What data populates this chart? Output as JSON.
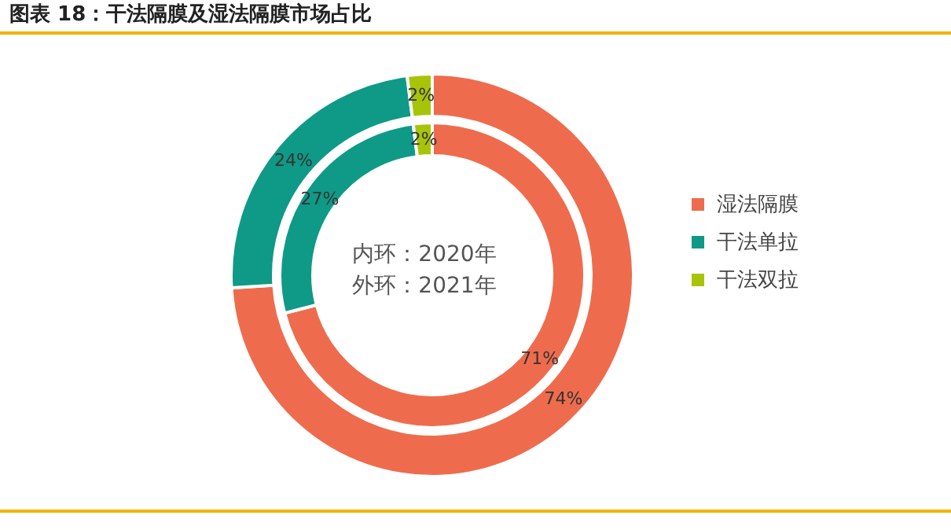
{
  "chart_data": {
    "type": "donut",
    "title": "图表 18：干法隔膜及湿法隔膜市场占比",
    "categories": [
      "湿法隔膜",
      "干法单拉",
      "干法双拉"
    ],
    "colors": [
      "#ee6c4d",
      "#0e9a87",
      "#a8c40a"
    ],
    "series": [
      {
        "values": [
          71,
          27,
          2
        ],
        "value_labels": [
          "71%",
          "27%",
          "2%"
        ]
      },
      {
        "values": [
          74,
          24,
          2
        ],
        "value_labels": [
          "74%",
          "24%",
          "2%"
        ]
      }
    ],
    "annotations": [
      "内环：2020年",
      "外环：2021年"
    ],
    "legend": "right"
  }
}
